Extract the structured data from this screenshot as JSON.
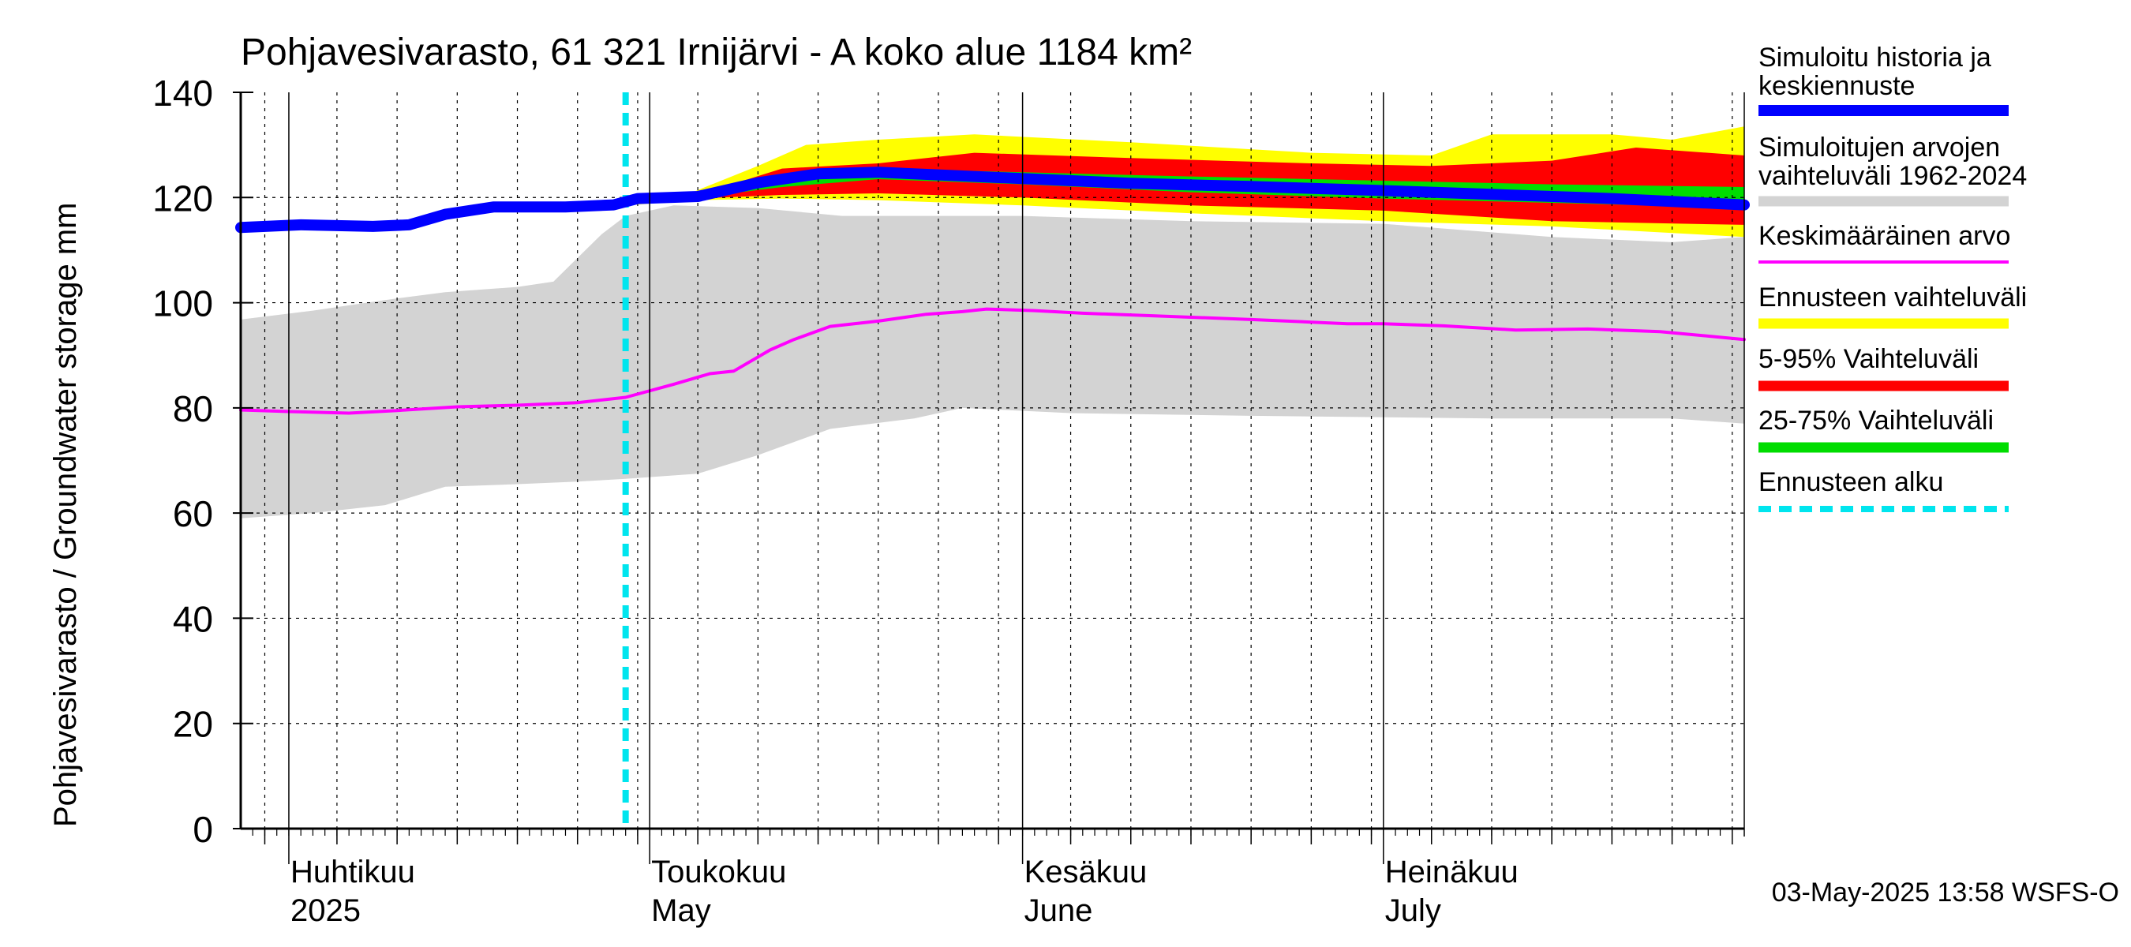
{
  "chart_data": {
    "type": "area",
    "title": "Pohjavesivarasto, 61 321 Irnijärvi - A koko alue 1184 km²",
    "ylabel": "Pohjavesivarasto / Groundwater storage   mm",
    "ylim": [
      0,
      140
    ],
    "y_ticks": [
      "0",
      "20",
      "40",
      "60",
      "80",
      "100",
      "120",
      "140"
    ],
    "xlim": [
      "2025-03-28",
      "2025-07-31"
    ],
    "grid": true,
    "legend_position": "right",
    "x_month_labels": [
      {
        "fi": "Huhtikuu",
        "en": "2025",
        "date": "2025-04-01"
      },
      {
        "fi": "Toukokuu",
        "en": "May",
        "date": "2025-05-01"
      },
      {
        "fi": "Kesäkuu",
        "en": "June",
        "date": "2025-06-01"
      },
      {
        "fi": "Heinäkuu",
        "en": "July",
        "date": "2025-07-01"
      }
    ],
    "forecast_start": "2025-04-29",
    "timestamp": "03-May-2025 13:58 WSFS-O",
    "series": [
      {
        "name": "Simuloitu historia ja keskiennuste",
        "color": "#0000ff",
        "points": [
          [
            "2025-03-28",
            114.3
          ],
          [
            "2025-04-02",
            114.8
          ],
          [
            "2025-04-08",
            114.5
          ],
          [
            "2025-04-11",
            114.8
          ],
          [
            "2025-04-14",
            116.8
          ],
          [
            "2025-04-18",
            118.2
          ],
          [
            "2025-04-21",
            118.2
          ],
          [
            "2025-04-24",
            118.2
          ],
          [
            "2025-04-28",
            118.6
          ],
          [
            "2025-04-30",
            119.8
          ],
          [
            "2025-05-05",
            120.2
          ],
          [
            "2025-05-10",
            122.8
          ],
          [
            "2025-05-15",
            124.5
          ],
          [
            "2025-05-20",
            124.8
          ],
          [
            "2025-05-25",
            124.3
          ],
          [
            "2025-06-01",
            123.6
          ],
          [
            "2025-06-10",
            122.7
          ],
          [
            "2025-06-20",
            122.1
          ],
          [
            "2025-06-30",
            121.4
          ],
          [
            "2025-07-10",
            120.6
          ],
          [
            "2025-07-20",
            119.8
          ],
          [
            "2025-07-31",
            118.6
          ]
        ]
      },
      {
        "name": "Keskimääräinen arvo",
        "color": "#ff00ff",
        "points": [
          [
            "2025-03-28",
            79.6
          ],
          [
            "2025-04-01",
            79.3
          ],
          [
            "2025-04-06",
            79.0
          ],
          [
            "2025-04-10",
            79.5
          ],
          [
            "2025-04-15",
            80.2
          ],
          [
            "2025-04-20",
            80.5
          ],
          [
            "2025-04-25",
            81.0
          ],
          [
            "2025-04-29",
            82.0
          ],
          [
            "2025-05-03",
            84.5
          ],
          [
            "2025-05-06",
            86.5
          ],
          [
            "2025-05-08",
            87.0
          ],
          [
            "2025-05-11",
            91.0
          ],
          [
            "2025-05-13",
            93.0
          ],
          [
            "2025-05-16",
            95.5
          ],
          [
            "2025-05-20",
            96.5
          ],
          [
            "2025-05-24",
            97.8
          ],
          [
            "2025-05-27",
            98.3
          ],
          [
            "2025-05-29",
            98.8
          ],
          [
            "2025-06-02",
            98.5
          ],
          [
            "2025-06-06",
            98.0
          ],
          [
            "2025-06-12",
            97.5
          ],
          [
            "2025-06-20",
            96.8
          ],
          [
            "2025-06-28",
            96.0
          ],
          [
            "2025-07-01",
            96.0
          ],
          [
            "2025-07-06",
            95.6
          ],
          [
            "2025-07-12",
            94.8
          ],
          [
            "2025-07-18",
            95.0
          ],
          [
            "2025-07-24",
            94.5
          ],
          [
            "2025-07-31",
            93.0
          ]
        ]
      }
    ],
    "bands": [
      {
        "name": "Simuloitujen arvojen vaihteluväli 1962-2024",
        "color": "#d3d3d3",
        "upper": [
          [
            "2025-03-28",
            96.8
          ],
          [
            "2025-04-03",
            98.5
          ],
          [
            "2025-04-09",
            100.5
          ],
          [
            "2025-04-14",
            102.0
          ],
          [
            "2025-04-20",
            103.0
          ],
          [
            "2025-04-23",
            104.0
          ],
          [
            "2025-04-25",
            108.5
          ],
          [
            "2025-04-27",
            113.0
          ],
          [
            "2025-04-29",
            116.5
          ],
          [
            "2025-05-03",
            118.5
          ],
          [
            "2025-05-10",
            118.0
          ],
          [
            "2025-05-17",
            116.5
          ],
          [
            "2025-05-24",
            116.5
          ],
          [
            "2025-06-01",
            116.5
          ],
          [
            "2025-06-15",
            115.5
          ],
          [
            "2025-07-01",
            115.0
          ],
          [
            "2025-07-15",
            112.5
          ],
          [
            "2025-07-25",
            111.5
          ],
          [
            "2025-07-31",
            112.5
          ]
        ],
        "lower": [
          [
            "2025-03-28",
            59.0
          ],
          [
            "2025-04-03",
            60.0
          ],
          [
            "2025-04-09",
            61.5
          ],
          [
            "2025-04-14",
            65.0
          ],
          [
            "2025-04-20",
            65.5
          ],
          [
            "2025-04-25",
            66.0
          ],
          [
            "2025-04-29",
            66.5
          ],
          [
            "2025-05-05",
            67.5
          ],
          [
            "2025-05-10",
            71.0
          ],
          [
            "2025-05-16",
            76.0
          ],
          [
            "2025-05-23",
            78.0
          ],
          [
            "2025-05-27",
            80.0
          ],
          [
            "2025-06-05",
            79.0
          ],
          [
            "2025-06-20",
            78.5
          ],
          [
            "2025-07-10",
            78.0
          ],
          [
            "2025-07-25",
            78.0
          ],
          [
            "2025-07-31",
            77.0
          ]
        ]
      },
      {
        "name": "Ennusteen vaihteluväli",
        "color": "#ffff00",
        "upper": [
          [
            "2025-04-29",
            119.5
          ],
          [
            "2025-05-04",
            120.5
          ],
          [
            "2025-05-10",
            126.0
          ],
          [
            "2025-05-14",
            130.0
          ],
          [
            "2025-05-20",
            131.0
          ],
          [
            "2025-05-28",
            132.0
          ],
          [
            "2025-06-10",
            130.5
          ],
          [
            "2025-06-25",
            128.5
          ],
          [
            "2025-07-05",
            128.0
          ],
          [
            "2025-07-10",
            132.0
          ],
          [
            "2025-07-20",
            132.0
          ],
          [
            "2025-07-25",
            131.0
          ],
          [
            "2025-07-31",
            133.5
          ]
        ],
        "lower": [
          [
            "2025-04-29",
            118.5
          ],
          [
            "2025-05-05",
            119.5
          ],
          [
            "2025-05-12",
            119.8
          ],
          [
            "2025-05-20",
            119.5
          ],
          [
            "2025-06-01",
            118.5
          ],
          [
            "2025-06-15",
            117.0
          ],
          [
            "2025-07-01",
            115.5
          ],
          [
            "2025-07-15",
            114.5
          ],
          [
            "2025-07-31",
            112.5
          ]
        ]
      },
      {
        "name": "5-95% Vaihteluväli",
        "color": "#ff0000",
        "upper": [
          [
            "2025-04-29",
            119.2
          ],
          [
            "2025-05-05",
            120.5
          ],
          [
            "2025-05-12",
            125.5
          ],
          [
            "2025-05-20",
            126.5
          ],
          [
            "2025-05-28",
            128.5
          ],
          [
            "2025-06-10",
            127.5
          ],
          [
            "2025-06-25",
            126.5
          ],
          [
            "2025-07-05",
            126.0
          ],
          [
            "2025-07-15",
            127.0
          ],
          [
            "2025-07-22",
            129.5
          ],
          [
            "2025-07-31",
            128.0
          ]
        ],
        "lower": [
          [
            "2025-04-29",
            118.8
          ],
          [
            "2025-05-05",
            119.8
          ],
          [
            "2025-05-12",
            120.5
          ],
          [
            "2025-05-20",
            120.8
          ],
          [
            "2025-06-01",
            120.0
          ],
          [
            "2025-06-15",
            118.5
          ],
          [
            "2025-07-01",
            117.5
          ],
          [
            "2025-07-15",
            115.5
          ],
          [
            "2025-07-31",
            114.8
          ]
        ]
      },
      {
        "name": "25-75% Vaihteluväli",
        "color": "#00dd00",
        "upper": [
          [
            "2025-04-29",
            119.1
          ],
          [
            "2025-05-05",
            120.3
          ],
          [
            "2025-05-12",
            124.0
          ],
          [
            "2025-05-20",
            125.5
          ],
          [
            "2025-06-01",
            124.8
          ],
          [
            "2025-06-15",
            124.0
          ],
          [
            "2025-07-01",
            123.2
          ],
          [
            "2025-07-15",
            122.5
          ],
          [
            "2025-07-31",
            122.0
          ]
        ],
        "lower": [
          [
            "2025-04-29",
            118.9
          ],
          [
            "2025-05-05",
            120.0
          ],
          [
            "2025-05-12",
            122.0
          ],
          [
            "2025-05-20",
            123.5
          ],
          [
            "2025-06-01",
            122.5
          ],
          [
            "2025-06-15",
            121.0
          ],
          [
            "2025-07-01",
            119.8
          ],
          [
            "2025-07-15",
            119.0
          ],
          [
            "2025-07-31",
            118.0
          ]
        ]
      }
    ],
    "legend": [
      {
        "label": "Simuloitu historia ja keskiennuste",
        "color": "#0000ff",
        "style": "solid-thick"
      },
      {
        "label": "Simuloitujen arvojen vaihteluväli 1962-2024",
        "color": "#d3d3d3",
        "style": "solid"
      },
      {
        "label": "Keskimääräinen arvo",
        "color": "#ff00ff",
        "style": "solid-thin"
      },
      {
        "label": "Ennusteen vaihteluväli",
        "color": "#ffff00",
        "style": "solid"
      },
      {
        "label": "5-95% Vaihteluväli",
        "color": "#ff0000",
        "style": "solid"
      },
      {
        "label": "25-75% Vaihteluväli",
        "color": "#00dd00",
        "style": "solid"
      },
      {
        "label": "Ennusteen alku",
        "color": "#00e5ee",
        "style": "dashed"
      }
    ]
  }
}
